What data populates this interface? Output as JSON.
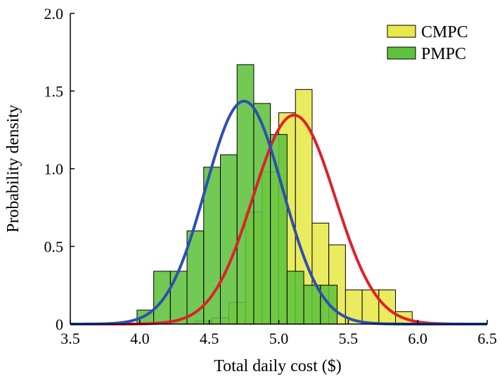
{
  "chart_data": {
    "type": "bar",
    "title": "",
    "xlabel": "Total daily cost ($)",
    "ylabel": "Probability density",
    "xlim": [
      3.5,
      6.5
    ],
    "ylim": [
      0,
      2.0
    ],
    "xticks": [
      "3.5",
      "4.0",
      "4.5",
      "5.0",
      "5.5",
      "6.0",
      "6.5"
    ],
    "yticks": [
      "0",
      "0.5",
      "1.0",
      "1.5",
      "2.0"
    ],
    "grid": false,
    "legend_position": "top-right",
    "bin_width": 0.12,
    "series": [
      {
        "name": "CMPC",
        "kind": "histogram",
        "color": "#e8e84a",
        "bins": [
          {
            "x": 4.4,
            "y": 0.02
          },
          {
            "x": 4.52,
            "y": 0.04
          },
          {
            "x": 4.64,
            "y": 0.14
          },
          {
            "x": 4.76,
            "y": 0.72
          },
          {
            "x": 4.88,
            "y": 0.98
          },
          {
            "x": 5.0,
            "y": 1.36
          },
          {
            "x": 5.12,
            "y": 1.51
          },
          {
            "x": 5.24,
            "y": 0.65
          },
          {
            "x": 5.36,
            "y": 0.51
          },
          {
            "x": 5.48,
            "y": 0.22
          },
          {
            "x": 5.6,
            "y": 0.22
          },
          {
            "x": 5.72,
            "y": 0.22
          },
          {
            "x": 5.84,
            "y": 0.08
          }
        ]
      },
      {
        "name": "PMPC",
        "kind": "histogram",
        "color": "#5fc23c",
        "bins": [
          {
            "x": 3.98,
            "y": 0.09
          },
          {
            "x": 4.1,
            "y": 0.34
          },
          {
            "x": 4.22,
            "y": 0.34
          },
          {
            "x": 4.34,
            "y": 0.6
          },
          {
            "x": 4.46,
            "y": 1.01
          },
          {
            "x": 4.58,
            "y": 1.09
          },
          {
            "x": 4.7,
            "y": 1.67
          },
          {
            "x": 4.82,
            "y": 1.42
          },
          {
            "x": 4.94,
            "y": 1.22
          },
          {
            "x": 5.06,
            "y": 0.34
          },
          {
            "x": 5.18,
            "y": 0.25
          },
          {
            "x": 5.3,
            "y": 0.25
          }
        ]
      },
      {
        "kind": "normal-curve",
        "color": "#e0202a",
        "mean": 5.11,
        "peak": 1.345,
        "sd": 0.296
      },
      {
        "kind": "normal-curve",
        "color": "#2d4fb3",
        "mean": 4.75,
        "peak": 1.435,
        "sd": 0.278
      }
    ]
  }
}
